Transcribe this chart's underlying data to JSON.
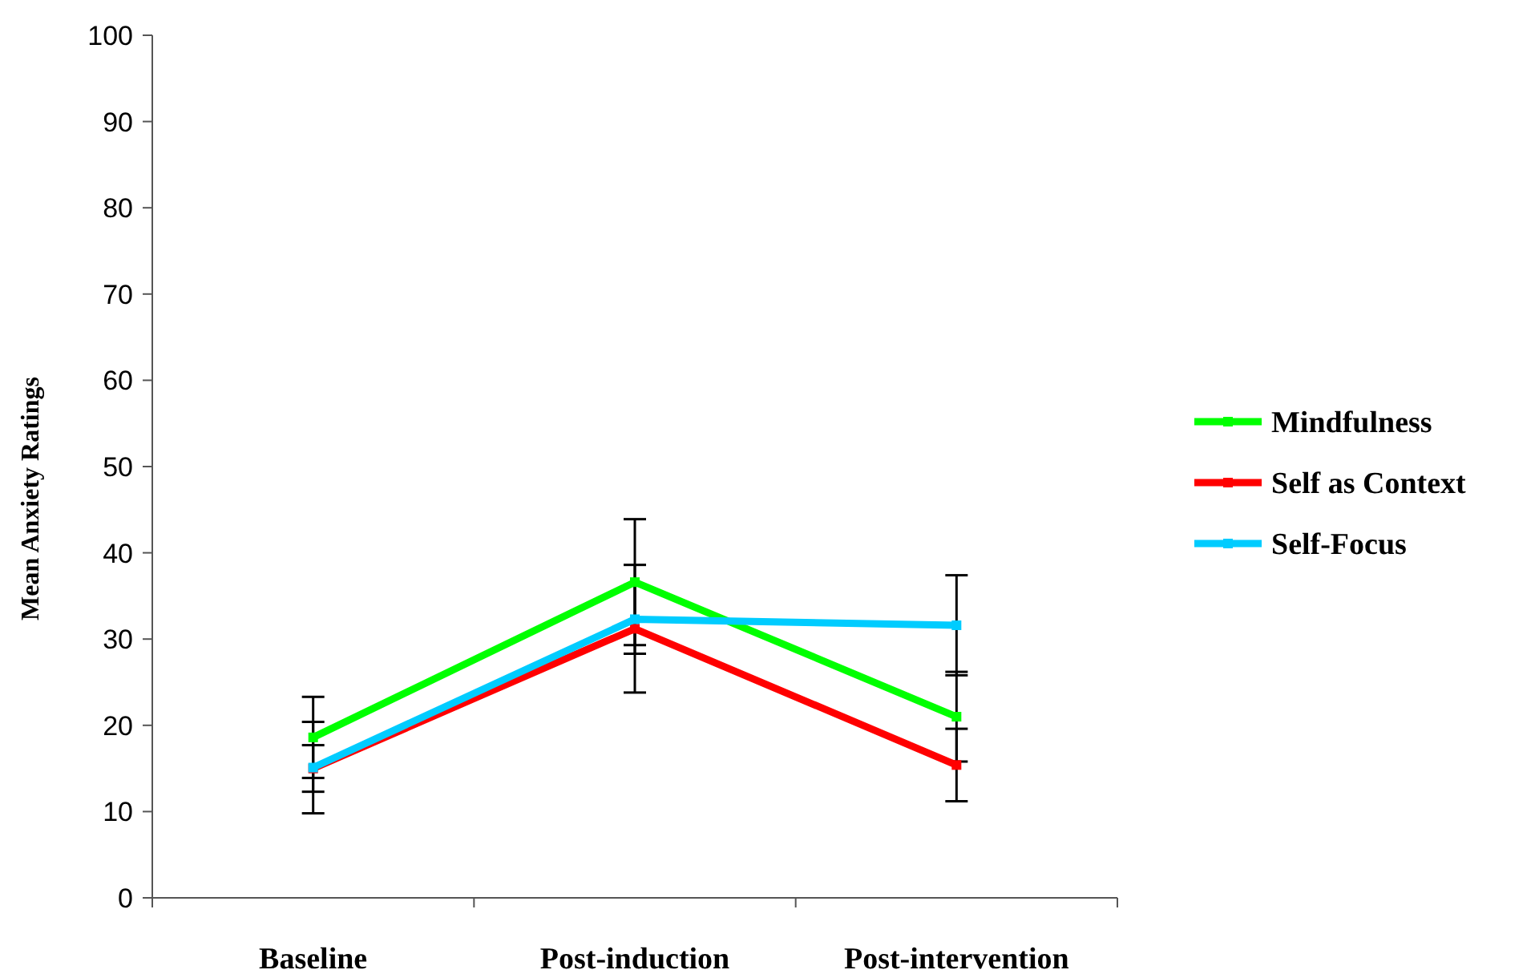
{
  "chart_data": {
    "type": "line",
    "ylabel": "Mean Anxiety Ratings",
    "categories": [
      "Baseline",
      "Post-induction",
      "Post-intervention"
    ],
    "ylim": [
      0,
      100
    ],
    "yticks": [
      0,
      10,
      20,
      30,
      40,
      50,
      60,
      70,
      80,
      90,
      100
    ],
    "grid": false,
    "legend": "right",
    "marker": "square",
    "line_style": "solid",
    "series": [
      {
        "name": "Mindfulness",
        "color": "#00ff00",
        "values": [
          18.6,
          36.6,
          21.0
        ],
        "errors": [
          4.7,
          7.3,
          5.2
        ]
      },
      {
        "name": "Self as Context",
        "color": "#ff0000",
        "values": [
          15.0,
          31.2,
          15.4
        ],
        "errors": [
          2.7,
          7.4,
          4.2
        ]
      },
      {
        "name": "Self-Focus",
        "color": "#00ccff",
        "values": [
          15.1,
          32.3,
          31.6
        ],
        "errors": [
          5.3,
          4.0,
          5.8
        ]
      }
    ]
  }
}
